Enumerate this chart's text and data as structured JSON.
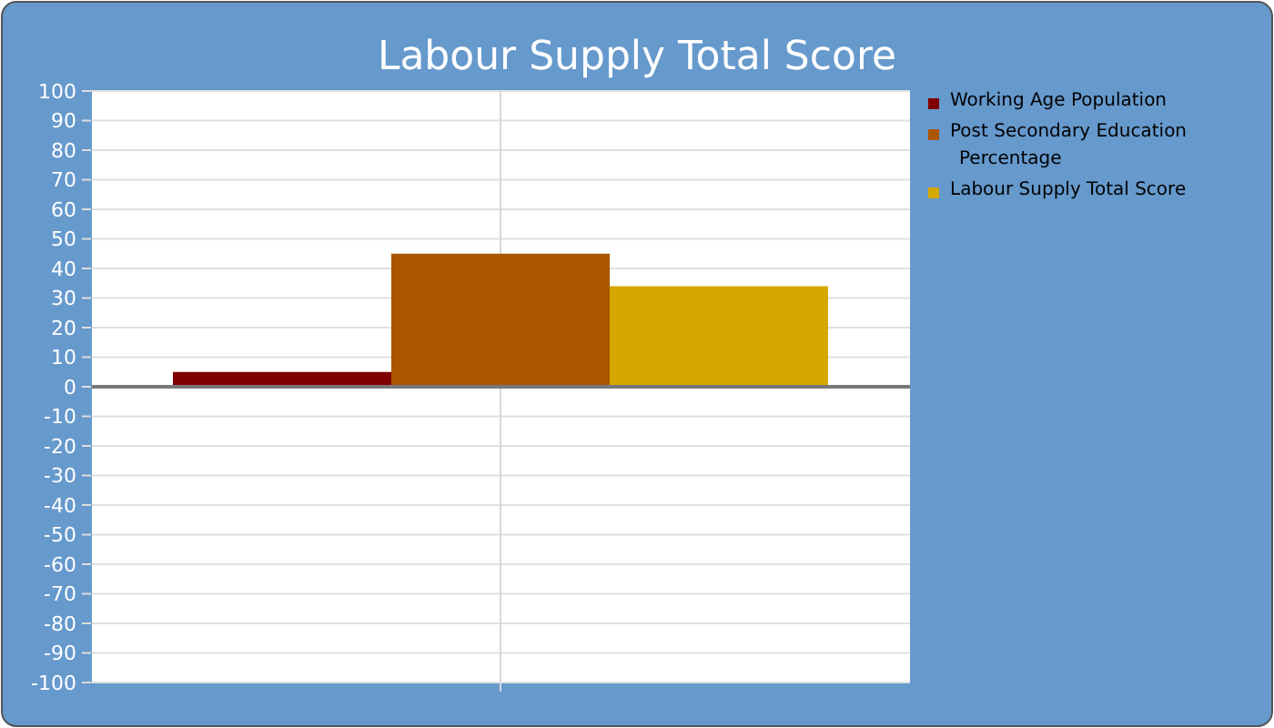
{
  "chart_data": {
    "type": "bar",
    "title": "Labour Supply Total Score",
    "categories": [
      null
    ],
    "series": [
      {
        "name": "Working Age Population",
        "color": "#800000",
        "values": [
          5
        ]
      },
      {
        "name": "Post Secondary Education Percentage",
        "color": "#aa5500",
        "values": [
          45
        ]
      },
      {
        "name": "Labour Supply Total Score",
        "color": "#d4a800",
        "values": [
          34
        ]
      }
    ],
    "ylim": [
      -100,
      100
    ],
    "yticks": [
      -100,
      -90,
      -80,
      -70,
      -60,
      -50,
      -40,
      -30,
      -20,
      -10,
      0,
      10,
      20,
      30,
      40,
      50,
      60,
      70,
      80,
      90,
      100
    ],
    "grid": true,
    "legend": "right"
  }
}
